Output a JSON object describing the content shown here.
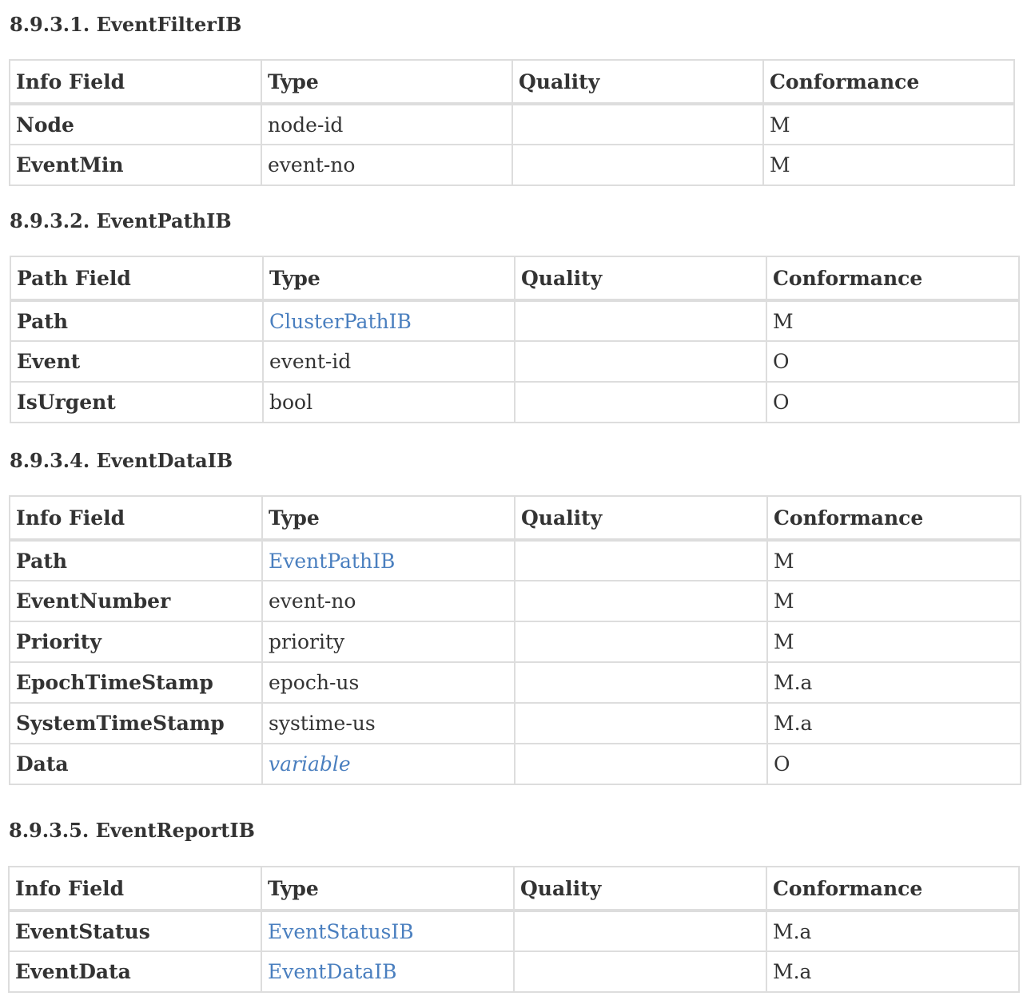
{
  "sections": [
    {
      "title": "8.9.3.1. EventFilterIB",
      "headers": [
        "Info Field",
        "Type",
        "Quality",
        "Conformance"
      ],
      "rows": [
        {
          "field": "Node",
          "type": "node-id",
          "quality": "",
          "conformance": "M"
        },
        {
          "field": "EventMin",
          "type": "event-no",
          "quality": "",
          "conformance": "M"
        }
      ]
    },
    {
      "title": "8.9.3.2. EventPathIB",
      "headers": [
        "Path Field",
        "Type",
        "Quality",
        "Conformance"
      ],
      "rows": [
        {
          "field": "Path",
          "type": "ClusterPathIB",
          "quality": "",
          "conformance": "M"
        },
        {
          "field": "Event",
          "type": "event-id",
          "quality": "",
          "conformance": "O"
        },
        {
          "field": "IsUrgent",
          "type": "bool",
          "quality": "",
          "conformance": "O"
        }
      ]
    },
    {
      "title": "8.9.3.4. EventDataIB",
      "headers": [
        "Info Field",
        "Type",
        "Quality",
        "Conformance"
      ],
      "rows": [
        {
          "field": "Path",
          "type": "EventPathIB",
          "quality": "",
          "conformance": "M"
        },
        {
          "field": "EventNumber",
          "type": "event-no",
          "quality": "",
          "conformance": "M"
        },
        {
          "field": "Priority",
          "type": "priority",
          "quality": "",
          "conformance": "M"
        },
        {
          "field": "EpochTimeStamp",
          "type": "epoch-us",
          "quality": "",
          "conformance": "M.a"
        },
        {
          "field": "SystemTimeStamp",
          "type": "systime-us",
          "quality": "",
          "conformance": "M.a"
        },
        {
          "field": "Data",
          "type": "variable",
          "quality": "",
          "conformance": "O"
        }
      ]
    },
    {
      "title": "8.9.3.5. EventReportIB",
      "headers": [
        "Info Field",
        "Type",
        "Quality",
        "Conformance"
      ],
      "rows": [
        {
          "field": "EventStatus",
          "type": "EventStatusIB",
          "quality": "",
          "conformance": "M.a"
        },
        {
          "field": "EventData",
          "type": "EventDataIB",
          "quality": "",
          "conformance": "M.a"
        }
      ]
    }
  ],
  "colors": {
    "text": "#333333",
    "link": "#4a7fbf",
    "border": "#dddddd"
  }
}
